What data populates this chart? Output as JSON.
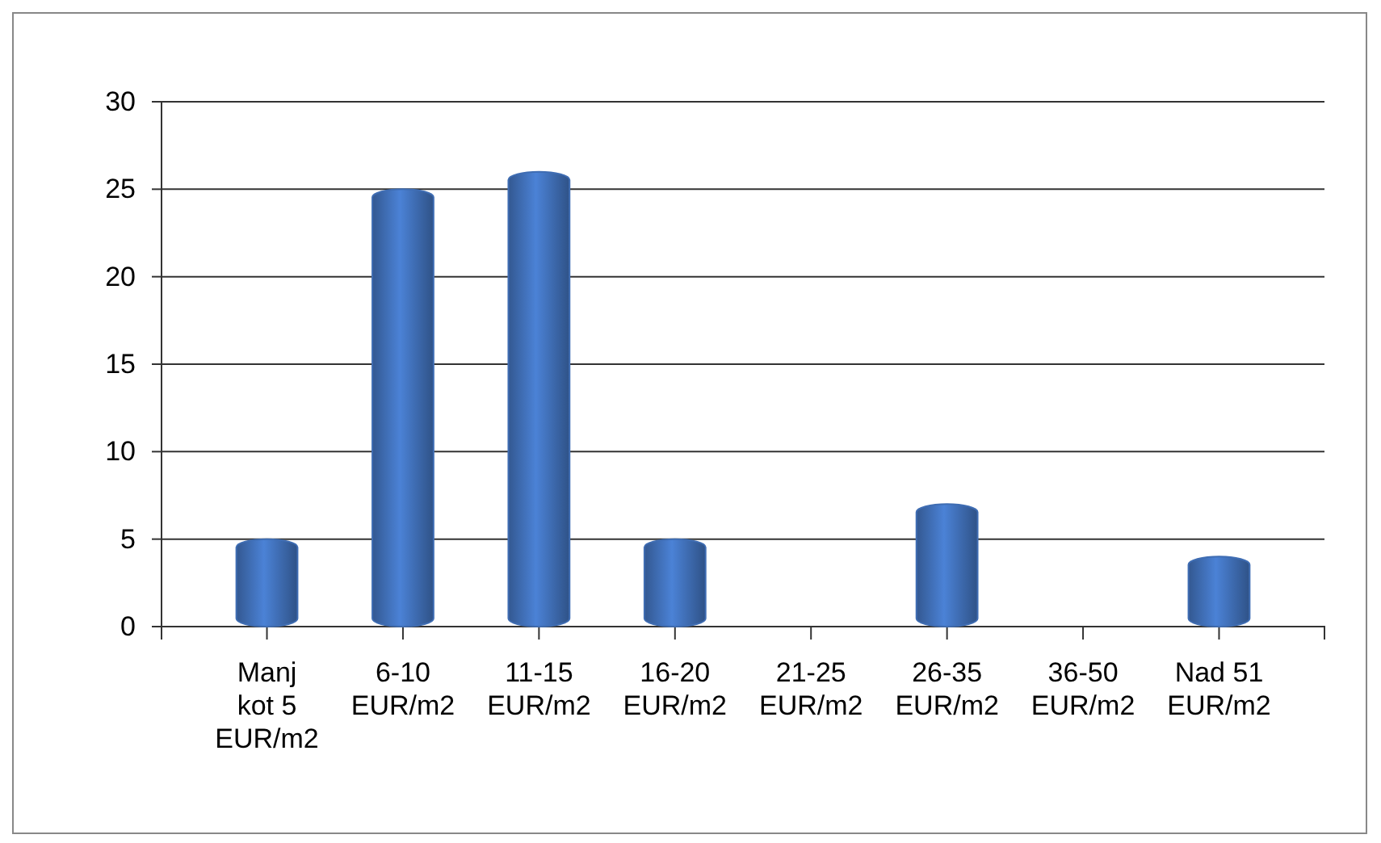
{
  "chart_data": {
    "type": "bar",
    "categories": [
      "Manj kot 5 EUR/m2",
      "6-10 EUR/m2",
      "11-15 EUR/m2",
      "16-20 EUR/m2",
      "21-25 EUR/m2",
      "26-35 EUR/m2",
      "36-50 EUR/m2",
      "Nad 51 EUR/m2"
    ],
    "values": [
      5,
      25,
      26,
      5,
      0,
      7,
      0,
      4
    ],
    "color": "#3f6db3",
    "ylim": [
      0,
      30
    ],
    "yticks": [
      0,
      5,
      10,
      15,
      20,
      25,
      30
    ],
    "grid": "y"
  }
}
